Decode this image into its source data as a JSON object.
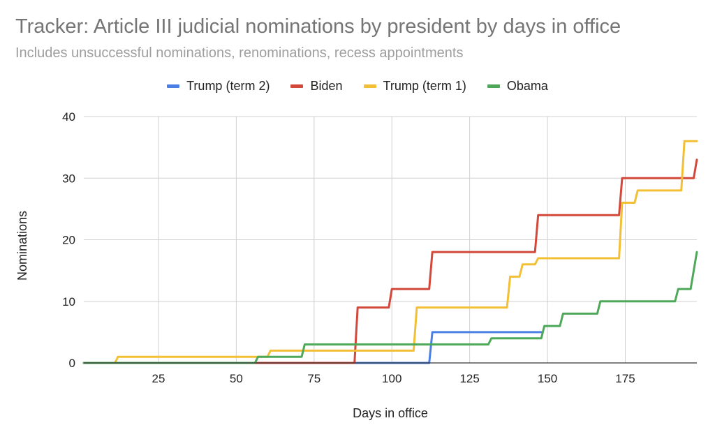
{
  "chart_data": {
    "type": "line",
    "title": "Tracker: Article III judicial nominations by president by days in office",
    "subtitle": "Includes unsuccessful nominations, renominations, recess appointments",
    "xlabel": "Days in office",
    "ylabel": "Nominations",
    "xlim": [
      1,
      198
    ],
    "ylim": [
      0,
      40
    ],
    "xticks": [
      25,
      50,
      75,
      100,
      125,
      150,
      175
    ],
    "yticks": [
      0,
      10,
      20,
      30,
      40
    ],
    "grid": true,
    "legend_position": "top",
    "step": true,
    "series": [
      {
        "name": "Trump (term 2)",
        "color": "#4a7fe6",
        "points": [
          [
            1,
            0
          ],
          [
            112,
            0
          ],
          [
            113,
            5
          ],
          [
            148,
            5
          ]
        ]
      },
      {
        "name": "Biden",
        "color": "#d2483a",
        "points": [
          [
            1,
            0
          ],
          [
            88,
            0
          ],
          [
            89,
            9
          ],
          [
            99,
            9
          ],
          [
            100,
            12
          ],
          [
            112,
            12
          ],
          [
            113,
            18
          ],
          [
            146,
            18
          ],
          [
            147,
            24
          ],
          [
            173,
            24
          ],
          [
            174,
            30
          ],
          [
            197,
            30
          ],
          [
            198,
            33
          ]
        ]
      },
      {
        "name": "Trump (term 1)",
        "color": "#f2bf35",
        "points": [
          [
            1,
            0
          ],
          [
            11,
            0
          ],
          [
            12,
            1
          ],
          [
            60,
            1
          ],
          [
            61,
            2
          ],
          [
            107,
            2
          ],
          [
            108,
            9
          ],
          [
            137,
            9
          ],
          [
            138,
            14
          ],
          [
            141,
            14
          ],
          [
            142,
            16
          ],
          [
            146,
            16
          ],
          [
            147,
            17
          ],
          [
            173,
            17
          ],
          [
            174,
            26
          ],
          [
            178,
            26
          ],
          [
            179,
            28
          ],
          [
            193,
            28
          ],
          [
            194,
            36
          ],
          [
            198,
            36
          ]
        ]
      },
      {
        "name": "Obama",
        "color": "#4ea85a",
        "points": [
          [
            1,
            0
          ],
          [
            56,
            0
          ],
          [
            57,
            1
          ],
          [
            71,
            1
          ],
          [
            72,
            3
          ],
          [
            131,
            3
          ],
          [
            132,
            4
          ],
          [
            148,
            4
          ],
          [
            149,
            6
          ],
          [
            154,
            6
          ],
          [
            155,
            8
          ],
          [
            166,
            8
          ],
          [
            167,
            10
          ],
          [
            191,
            10
          ],
          [
            192,
            12
          ],
          [
            196,
            12
          ],
          [
            198,
            18
          ]
        ]
      }
    ]
  }
}
